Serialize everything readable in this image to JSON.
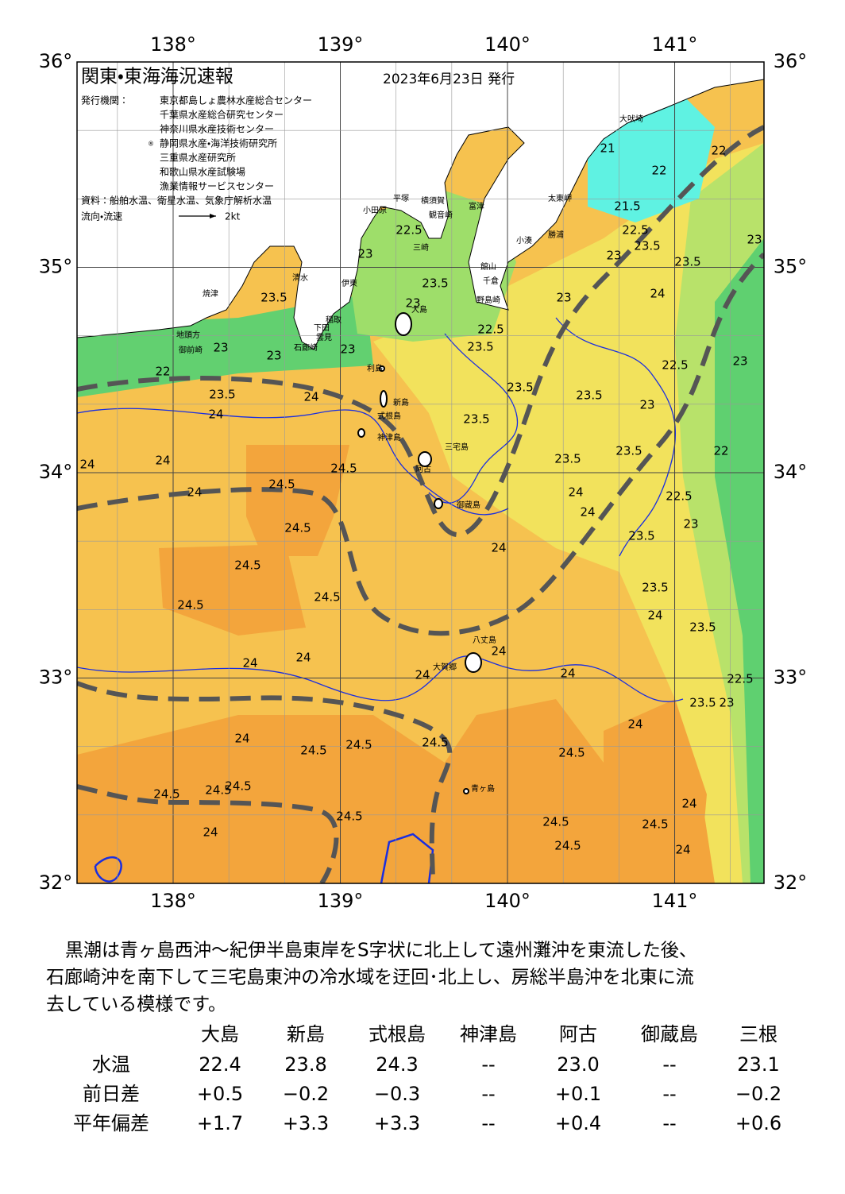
{
  "map": {
    "title": "関東・東海海況速報",
    "date": "2023年6月23日 発行",
    "issuer_label": "発行機関：",
    "issuer_mark": "®",
    "issuers": [
      "東京都島しょ農林水産総合センター",
      "千葉県水産総合研究センター",
      "神奈川県水産技術センター",
      "静岡県水産・海洋技術研究所",
      "三重県水産研究所",
      "和歌山県水産試験場",
      "漁業情報サービスセンター"
    ],
    "sources": "資料：船舶水温、衛星水温、気象庁解析水温",
    "flow_label": "流向・流速",
    "flow_scale": "2kt",
    "lon_labels": [
      "138°",
      "139°",
      "140°",
      "141°"
    ],
    "lat_labels": [
      "36°",
      "35°",
      "34°",
      "33°",
      "32°"
    ],
    "places": [
      "大吠埼",
      "太東岬",
      "勝浦",
      "小湊",
      "富津",
      "館山",
      "千倉",
      "野島崎",
      "横須賀",
      "観音崎",
      "三崎",
      "平塚",
      "小田原",
      "伊東",
      "清水",
      "焼津",
      "地頭方",
      "御前崎",
      "稲取",
      "下田",
      "雲見",
      "石廊崎",
      "大島",
      "利島",
      "新島",
      "式根島",
      "神津島",
      "三宅島",
      "阿古",
      "御蔵島",
      "八丈島",
      "大賀郷",
      "青ヶ島"
    ],
    "contours": [
      "22.5",
      "23",
      "23.5",
      "23",
      "23.5",
      "22.5",
      "23.5",
      "23",
      "22",
      "23",
      "23",
      "24",
      "23.5",
      "24",
      "24",
      "24",
      "24",
      "24.5",
      "24.5",
      "24.5",
      "24.5",
      "24.5",
      "24.5",
      "24",
      "24",
      "23.5",
      "23.5",
      "23.5",
      "23.5",
      "23.5",
      "24",
      "24",
      "24",
      "23.5",
      "23.5",
      "24",
      "23.5",
      "24",
      "24",
      "24",
      "21",
      "22",
      "21.5",
      "22.5",
      "23",
      "23.5",
      "24",
      "23.5",
      "23",
      "23",
      "22.5",
      "23",
      "23",
      "22",
      "22.5",
      "23",
      "22",
      "22.5",
      "23.5",
      "23",
      "24",
      "24.5",
      "24.5",
      "24.5",
      "24.5",
      "24",
      "24.5",
      "24.5",
      "24.5",
      "24",
      "24.5",
      "24.5",
      "24.5",
      "24.5",
      "24",
      "24"
    ]
  },
  "description": [
    "黒潮は青ヶ島西沖～紀伊半島東岸をS字状に北上して遠州灘沖を東流した後、",
    "石廊崎沖を南下して三宅島東沖の冷水域を迂回･北上し、房総半島沖を北東に流",
    "去している模様です。"
  ],
  "table": {
    "columns": [
      "大島",
      "新島",
      "式根島",
      "神津島",
      "阿古",
      "御蔵島",
      "三根"
    ],
    "rows": [
      {
        "label": "水温",
        "values": [
          "22.4",
          "23.8",
          "24.3",
          "--",
          "23.0",
          "--",
          "23.1"
        ]
      },
      {
        "label": "前日差",
        "values": [
          "+0.5",
          "−0.2",
          "−0.3",
          "--",
          "+0.1",
          "--",
          "−0.2"
        ]
      },
      {
        "label": "平年偏差",
        "values": [
          "+1.7",
          "+3.3",
          "+3.3",
          "--",
          "+0.4",
          "--",
          "+0.6"
        ]
      }
    ]
  }
}
